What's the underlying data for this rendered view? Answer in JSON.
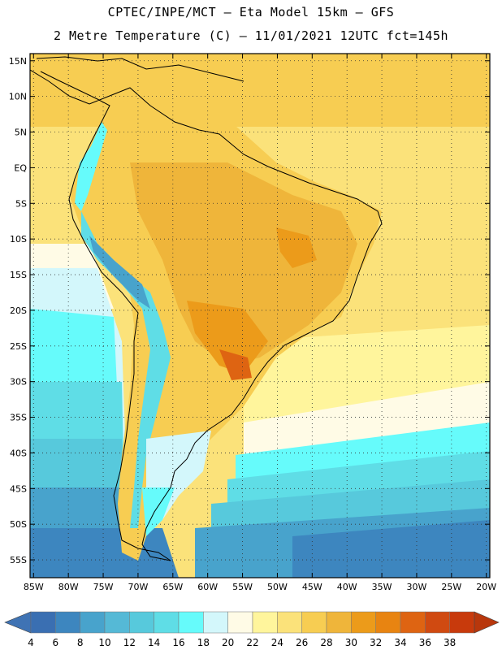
{
  "title": {
    "line1": "CPTEC/INPE/MCT –   Eta Model 15km – GFS",
    "line2": "2 Metre Temperature (C) – 11/01/2021 12UTC fct=145h"
  },
  "map": {
    "lat_labels": [
      "15N",
      "10N",
      "5N",
      "EQ",
      "5S",
      "10S",
      "15S",
      "20S",
      "25S",
      "30S",
      "35S",
      "40S",
      "45S",
      "50S",
      "55S"
    ],
    "lon_labels": [
      "85W",
      "80W",
      "75W",
      "70W",
      "65W",
      "60W",
      "55W",
      "50W",
      "45W",
      "40W",
      "35W",
      "30W",
      "25W",
      "20W"
    ],
    "lat_values": [
      15,
      10,
      5,
      0,
      -5,
      -10,
      -15,
      -20,
      -25,
      -30,
      -35,
      -40,
      -45,
      -50,
      -55
    ],
    "lon_values": [
      -85,
      -80,
      -75,
      -70,
      -65,
      -60,
      -55,
      -50,
      -45,
      -40,
      -35,
      -30,
      -25,
      -20
    ],
    "extent": {
      "lon_min": -85.5,
      "lon_max": -19.5,
      "lat_min": -57.5,
      "lat_max": 16.0
    }
  },
  "colorbar": {
    "unit": "C",
    "labels": [
      "4",
      "6",
      "8",
      "10",
      "12",
      "14",
      "16",
      "18",
      "20",
      "22",
      "24",
      "26",
      "28",
      "30",
      "32",
      "34",
      "36",
      "38"
    ],
    "colors": [
      "#3a6fb2",
      "#3d86bf",
      "#48a3cc",
      "#55b9d6",
      "#57c9dc",
      "#5fdde6",
      "#66fbfb",
      "#d3f7fb",
      "#fffbe6",
      "#fff59c",
      "#fbe27a",
      "#f7cd52",
      "#efb53a",
      "#ec9b1a",
      "#e88411",
      "#de6412",
      "#d04a11",
      "#c83a0c"
    ],
    "under_color": "#3f73b4",
    "over_color": "#b8370c"
  }
}
